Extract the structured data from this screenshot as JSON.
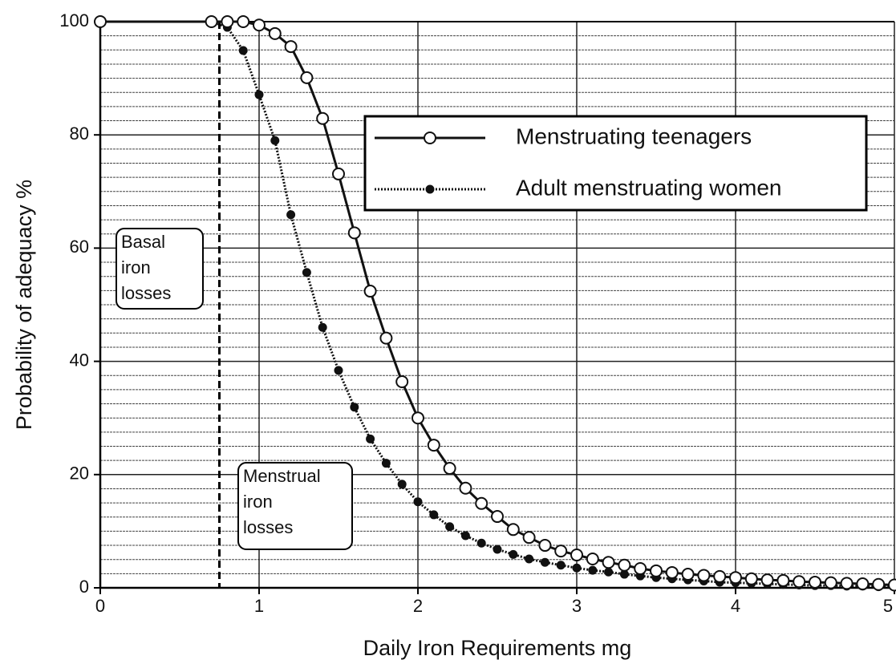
{
  "chart_data": {
    "type": "line",
    "xlabel": "Daily Iron Requirements mg",
    "ylabel": "Probability of adequacy %",
    "xlim": [
      0,
      5
    ],
    "ylim": [
      0,
      100
    ],
    "xticks": [
      0,
      1,
      2,
      3,
      4,
      5
    ],
    "yticks": [
      0,
      20,
      40,
      60,
      80,
      100
    ],
    "ygrid_minor": [
      2.5,
      5,
      7.5,
      10,
      12.5,
      15,
      17.5,
      22.5,
      25,
      27.5,
      30,
      32.5,
      35,
      37.5,
      42.5,
      45,
      47.5,
      50,
      52.5,
      55,
      57.5,
      62.5,
      65,
      67.5,
      70,
      72.5,
      75,
      77.5,
      82.5,
      85,
      87.5,
      90,
      92.5,
      95,
      97.5
    ],
    "grid": true,
    "legend": "upper right",
    "vline": 0.75,
    "annotations": [
      {
        "lines": [
          "Basal",
          "iron",
          "losses"
        ]
      },
      {
        "lines": [
          "Menstrual",
          "iron",
          "losses"
        ]
      }
    ],
    "series": [
      {
        "name": "Menstruating teenagers",
        "color": "#111111",
        "marker": "open",
        "linestyle": "solid",
        "x": [
          0,
          0.7,
          0.8,
          0.9,
          1.0,
          1.1,
          1.2,
          1.3,
          1.4,
          1.5,
          1.6,
          1.7,
          1.8,
          1.9,
          2.0,
          2.1,
          2.2,
          2.3,
          2.4,
          2.5,
          2.6,
          2.7,
          2.8,
          2.9,
          3.0,
          3.1,
          3.2,
          3.3,
          3.4,
          3.5,
          3.6,
          3.7,
          3.8,
          3.9,
          4.0,
          4.1,
          4.2,
          4.3,
          4.4,
          4.5,
          4.6,
          4.7,
          4.8,
          4.9,
          5.0
        ],
        "values": [
          100,
          100,
          100,
          100,
          99.4,
          97.9,
          95.6,
          90.1,
          82.9,
          73.1,
          62.7,
          52.4,
          44.1,
          36.4,
          30.0,
          25.2,
          21.1,
          17.6,
          14.9,
          12.6,
          10.3,
          8.9,
          7.5,
          6.5,
          5.8,
          5.1,
          4.5,
          4.0,
          3.4,
          3.0,
          2.7,
          2.4,
          2.2,
          2.0,
          1.8,
          1.6,
          1.4,
          1.3,
          1.1,
          1.0,
          0.9,
          0.8,
          0.7,
          0.6,
          0.5
        ]
      },
      {
        "name": "Adult menstruating women",
        "color": "#111111",
        "marker": "filled",
        "linestyle": "dotted",
        "x": [
          0.7,
          0.8,
          0.9,
          1.0,
          1.1,
          1.2,
          1.3,
          1.4,
          1.5,
          1.6,
          1.7,
          1.8,
          1.9,
          2.0,
          2.1,
          2.2,
          2.3,
          2.4,
          2.5,
          2.6,
          2.7,
          2.8,
          2.9,
          3.0,
          3.1,
          3.2,
          3.3,
          3.4,
          3.5,
          3.6,
          3.7,
          3.8,
          3.9,
          4.0,
          4.1,
          4.2,
          4.3,
          4.4,
          4.5,
          4.6,
          4.7,
          4.8,
          4.9,
          5.0
        ],
        "values": [
          100,
          99,
          94.9,
          87.1,
          79,
          65.9,
          55.7,
          46,
          38.4,
          31.9,
          26.3,
          22,
          18.3,
          15.2,
          12.9,
          10.8,
          9.2,
          7.9,
          6.8,
          5.9,
          5.1,
          4.5,
          4.0,
          3.5,
          3.1,
          2.8,
          2.4,
          2.1,
          1.8,
          1.6,
          1.4,
          1.2,
          1.0,
          0.9,
          0.8,
          0.7,
          0.6,
          0.5,
          0.4,
          0.4,
          0.3,
          0.3,
          0.2,
          0.2
        ]
      }
    ]
  }
}
